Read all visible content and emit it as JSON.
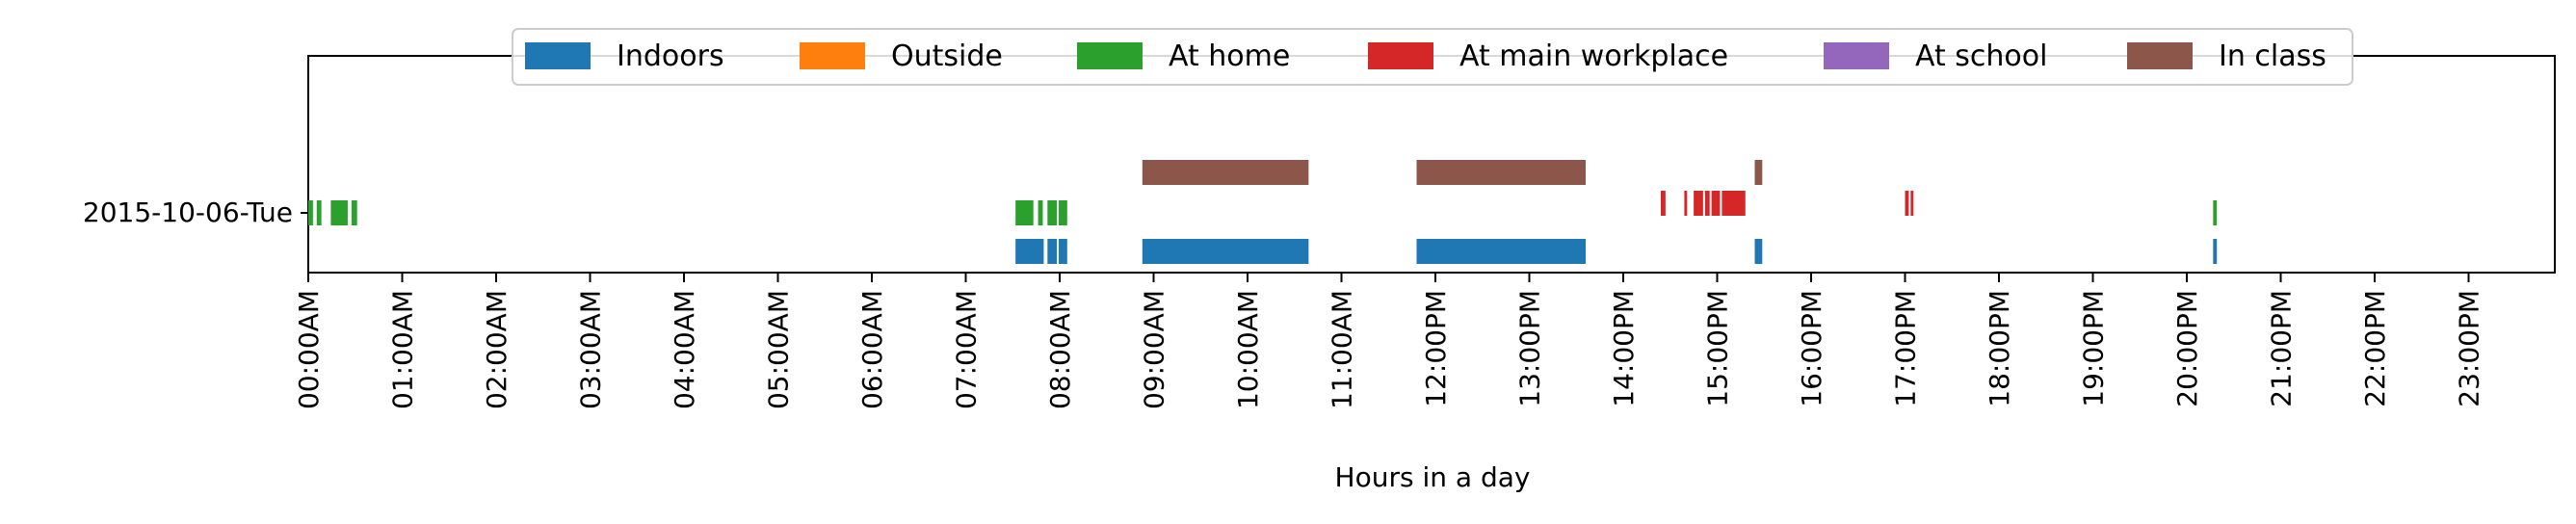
{
  "chart_data": {
    "type": "bar",
    "orientation": "horizontal-timeline",
    "xlabel": "Hours in a day",
    "ylabel": "",
    "xlim": [
      0,
      24
    ],
    "x_ticks": [
      "00:00AM",
      "01:00AM",
      "02:00AM",
      "03:00AM",
      "04:00AM",
      "05:00AM",
      "06:00AM",
      "07:00AM",
      "08:00AM",
      "09:00AM",
      "10:00AM",
      "11:00AM",
      "12:00PM",
      "13:00PM",
      "14:00PM",
      "15:00PM",
      "16:00PM",
      "17:00PM",
      "18:00PM",
      "19:00PM",
      "20:00PM",
      "21:00PM",
      "22:00PM",
      "23:00PM"
    ],
    "y_categories": [
      "2015-10-06-Tue"
    ],
    "grid": false,
    "legend_placement": "top-center",
    "series": [
      {
        "name": "Indoors",
        "color": "#1f77b4",
        "intervals": [
          [
            7.53,
            7.83
          ],
          [
            7.87,
            7.97
          ],
          [
            7.99,
            8.08
          ],
          [
            8.88,
            10.65
          ],
          [
            11.8,
            13.6
          ],
          [
            15.4,
            15.48
          ],
          [
            20.28,
            20.32
          ]
        ]
      },
      {
        "name": "Outside",
        "color": "#ff7f0e",
        "intervals": []
      },
      {
        "name": "At home",
        "color": "#2ca02c",
        "intervals": [
          [
            0.0,
            0.05
          ],
          [
            0.09,
            0.14
          ],
          [
            0.24,
            0.42
          ],
          [
            0.46,
            0.52
          ],
          [
            7.53,
            7.72
          ],
          [
            7.77,
            7.82
          ],
          [
            7.87,
            7.97
          ],
          [
            7.99,
            8.08
          ],
          [
            20.28,
            20.32
          ]
        ]
      },
      {
        "name": "At main workplace",
        "color": "#d62728",
        "intervals": [
          [
            14.4,
            14.45
          ],
          [
            14.65,
            14.68
          ],
          [
            14.75,
            14.85
          ],
          [
            14.87,
            14.92
          ],
          [
            14.94,
            15.03
          ],
          [
            15.05,
            15.3
          ],
          [
            17.0,
            17.04
          ],
          [
            17.06,
            17.09
          ]
        ]
      },
      {
        "name": "At school",
        "color": "#9467bd",
        "intervals": []
      },
      {
        "name": "In class",
        "color": "#8c564b",
        "intervals": [
          [
            8.88,
            10.65
          ],
          [
            11.8,
            13.6
          ],
          [
            15.4,
            15.48
          ]
        ]
      }
    ]
  }
}
